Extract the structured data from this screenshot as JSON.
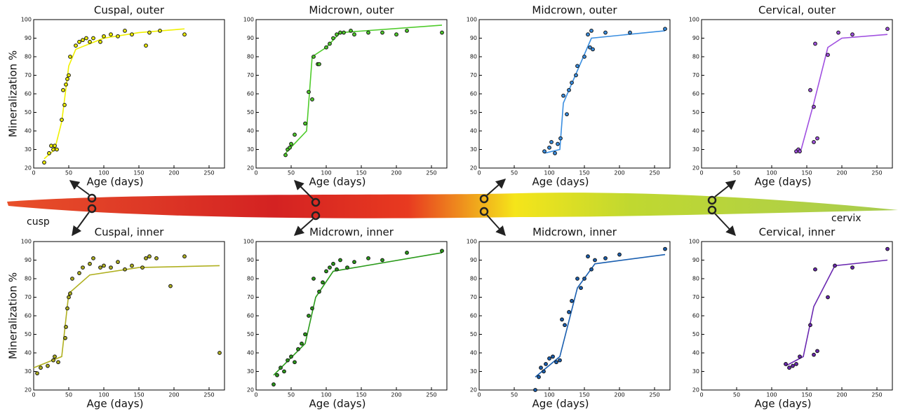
{
  "chart_data": [
    {
      "type": "scatter",
      "title": "Cuspal, outer",
      "xlabel": "Age (days)",
      "ylabel": "Mineralization %",
      "color": "#f0f000",
      "x": [
        15,
        22,
        25,
        28,
        30,
        33,
        40,
        42,
        44,
        46,
        48,
        50,
        52,
        60,
        65,
        70,
        75,
        80,
        85,
        95,
        100,
        110,
        120,
        130,
        140,
        160,
        165,
        180,
        215
      ],
      "values": [
        23,
        28,
        32,
        30,
        32,
        30,
        46,
        62,
        54,
        65,
        68,
        70,
        80,
        86,
        88,
        89,
        90,
        88,
        90,
        88,
        91,
        92,
        91,
        94,
        92,
        86,
        93,
        94,
        92
      ],
      "fit_x": [
        15,
        30,
        40,
        50,
        60,
        100,
        150,
        215
      ],
      "fit_values": [
        25,
        30,
        45,
        75,
        84,
        90,
        93,
        95
      ],
      "xlim": [
        0,
        272
      ],
      "ylim": [
        20,
        100
      ],
      "xticks": [
        0,
        50,
        100,
        150,
        200,
        250
      ],
      "yticks": [
        20,
        30,
        40,
        50,
        60,
        70,
        80,
        90,
        100
      ]
    },
    {
      "type": "scatter",
      "title": "Midcrown, outer",
      "xlabel": "Age (days)",
      "color": "#4ecb2a",
      "x": [
        42,
        45,
        48,
        50,
        55,
        70,
        75,
        80,
        82,
        88,
        90,
        100,
        105,
        110,
        115,
        120,
        125,
        135,
        140,
        160,
        180,
        200,
        215,
        265
      ],
      "values": [
        27,
        30,
        31,
        33,
        38,
        44,
        61,
        57,
        80,
        76,
        76,
        85,
        87,
        90,
        92,
        93,
        93,
        94,
        92,
        93,
        93,
        92,
        94,
        93
      ],
      "fit_x": [
        42,
        72,
        80,
        100,
        120,
        265
      ],
      "fit_values": [
        28,
        40,
        80,
        85,
        93,
        97
      ],
      "xlim": [
        0,
        272
      ],
      "ylim": [
        20,
        100
      ],
      "xticks": [
        0,
        50,
        100,
        150,
        200,
        250
      ],
      "yticks": [
        20,
        30,
        40,
        50,
        60,
        70,
        80,
        90,
        100
      ]
    },
    {
      "type": "scatter",
      "title": "Midcrown, outer",
      "xlabel": "Age (days)",
      "color": "#3a8ee0",
      "x": [
        93,
        100,
        103,
        108,
        112,
        116,
        120,
        125,
        128,
        132,
        138,
        140,
        150,
        155,
        158,
        160,
        162,
        180,
        215,
        265
      ],
      "values": [
        29,
        31,
        34,
        28,
        33,
        36,
        59,
        49,
        62,
        66,
        70,
        75,
        80,
        92,
        85,
        94,
        84,
        93,
        93,
        95
      ],
      "fit_x": [
        93,
        115,
        120,
        160,
        265
      ],
      "fit_values": [
        28,
        30,
        55,
        90,
        94
      ],
      "xlim": [
        0,
        272
      ],
      "ylim": [
        20,
        100
      ],
      "xticks": [
        0,
        50,
        100,
        150,
        200,
        250
      ],
      "yticks": [
        20,
        30,
        40,
        50,
        60,
        70,
        80,
        90,
        100
      ]
    },
    {
      "type": "scatter",
      "title": "Cervical, outer",
      "xlabel": "Age (days)",
      "color": "#a050e0",
      "x": [
        135,
        138,
        140,
        155,
        160,
        160,
        162,
        165,
        180,
        195,
        215,
        265
      ],
      "values": [
        29,
        30,
        29,
        62,
        53,
        34,
        87,
        36,
        81,
        93,
        92,
        95
      ],
      "fit_x": [
        133,
        142,
        160,
        180,
        200,
        265
      ],
      "fit_values": [
        28,
        30,
        55,
        85,
        90,
        92
      ],
      "xlim": [
        0,
        272
      ],
      "ylim": [
        20,
        100
      ],
      "xticks": [
        0,
        50,
        100,
        150,
        200,
        250
      ],
      "yticks": [
        20,
        30,
        40,
        50,
        60,
        70,
        80,
        90,
        100
      ]
    },
    {
      "type": "scatter",
      "title": "Cuspal, inner",
      "xlabel": "Age (days)",
      "ylabel": "Mineralization %",
      "color": "#b0b020",
      "x": [
        5,
        10,
        20,
        28,
        30,
        35,
        45,
        46,
        48,
        50,
        52,
        55,
        65,
        70,
        80,
        85,
        95,
        100,
        110,
        120,
        130,
        140,
        155,
        160,
        165,
        175,
        195,
        215,
        265
      ],
      "values": [
        29,
        32,
        33,
        36,
        38,
        35,
        48,
        54,
        64,
        70,
        72,
        80,
        83,
        86,
        88,
        91,
        86,
        87,
        86,
        89,
        85,
        87,
        86,
        91,
        92,
        91,
        76,
        92,
        40
      ],
      "fit_x": [
        0,
        40,
        50,
        80,
        150,
        265
      ],
      "fit_values": [
        32,
        38,
        72,
        82,
        86,
        87
      ],
      "xlim": [
        0,
        272
      ],
      "ylim": [
        20,
        100
      ],
      "xticks": [
        0,
        50,
        100,
        150,
        200,
        250
      ],
      "yticks": [
        20,
        30,
        40,
        50,
        60,
        70,
        80,
        90,
        100
      ]
    },
    {
      "type": "scatter",
      "title": "Midcrown, inner",
      "xlabel": "Age (days)",
      "color": "#2a9a1a",
      "x": [
        25,
        30,
        35,
        40,
        45,
        50,
        55,
        60,
        65,
        70,
        75,
        80,
        82,
        90,
        95,
        100,
        105,
        110,
        115,
        120,
        130,
        140,
        160,
        180,
        215,
        265
      ],
      "values": [
        23,
        28,
        32,
        30,
        36,
        38,
        35,
        42,
        45,
        50,
        60,
        64,
        80,
        73,
        78,
        84,
        86,
        88,
        85,
        90,
        86,
        89,
        91,
        90,
        94,
        95
      ],
      "fit_x": [
        25,
        70,
        85,
        110,
        265
      ],
      "fit_values": [
        28,
        45,
        70,
        84,
        94
      ],
      "xlim": [
        0,
        272
      ],
      "ylim": [
        20,
        100
      ],
      "xticks": [
        0,
        50,
        100,
        150,
        200,
        250
      ],
      "yticks": [
        20,
        30,
        40,
        50,
        60,
        70,
        80,
        90,
        100
      ]
    },
    {
      "type": "scatter",
      "title": "Midcrown, inner",
      "xlabel": "Age (days)",
      "color": "#1a5fb0",
      "x": [
        80,
        85,
        88,
        92,
        95,
        100,
        105,
        110,
        115,
        118,
        122,
        128,
        132,
        140,
        145,
        150,
        155,
        160,
        165,
        180,
        200,
        265
      ],
      "values": [
        20,
        27,
        32,
        30,
        34,
        37,
        38,
        35,
        36,
        58,
        55,
        62,
        68,
        80,
        75,
        80,
        92,
        85,
        90,
        91,
        93,
        96
      ],
      "fit_x": [
        80,
        115,
        140,
        165,
        265
      ],
      "fit_values": [
        27,
        38,
        75,
        88,
        93
      ],
      "xlim": [
        0,
        272
      ],
      "ylim": [
        20,
        100
      ],
      "xticks": [
        0,
        50,
        100,
        150,
        200,
        250
      ],
      "yticks": [
        20,
        30,
        40,
        50,
        60,
        70,
        80,
        90,
        100
      ]
    },
    {
      "type": "scatter",
      "title": "Cervical, inner",
      "xlabel": "Age (days)",
      "color": "#6a28b0",
      "x": [
        120,
        125,
        130,
        135,
        140,
        155,
        160,
        162,
        165,
        180,
        190,
        215,
        265
      ],
      "values": [
        34,
        32,
        33,
        34,
        38,
        55,
        39,
        85,
        41,
        70,
        87,
        86,
        96
      ],
      "fit_x": [
        120,
        145,
        160,
        190,
        265
      ],
      "fit_values": [
        33,
        38,
        65,
        87,
        90
      ],
      "xlim": [
        0,
        272
      ],
      "ylim": [
        20,
        100
      ],
      "xticks": [
        0,
        50,
        100,
        150,
        200,
        250
      ],
      "yticks": [
        20,
        30,
        40,
        50,
        60,
        70,
        80,
        90,
        100
      ]
    }
  ],
  "tooth": {
    "cusp_label": "cusp",
    "cervix_label": "cervix"
  }
}
